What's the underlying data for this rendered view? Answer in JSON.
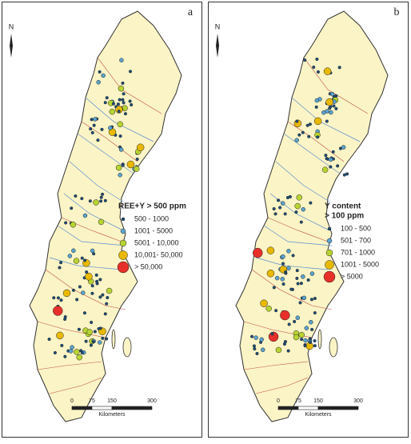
{
  "panels": [
    {
      "label": "a",
      "north": "N",
      "legend_title": [
        "REE+Y > 500 ppm"
      ],
      "legend_items": [
        {
          "label": "500 - 1000",
          "color": "#1f4e79"
        },
        {
          "label": "1001 - 5000",
          "color": "#5ba3d0"
        },
        {
          "label": "5001 - 10,000",
          "color": "#b8d432"
        },
        {
          "label": "10,001- 50,000",
          "color": "#e8b900"
        },
        {
          "label": "> 50,000",
          "color": "#e8302a"
        }
      ],
      "scale_bar": {
        "ticks": [
          0,
          75,
          150,
          300
        ],
        "unit": "Kilometers"
      }
    },
    {
      "label": "b",
      "north": "N",
      "legend_title": [
        "Y content",
        "> 100 ppm"
      ],
      "legend_items": [
        {
          "label": "100 - 500",
          "color": "#1f4e79"
        },
        {
          "label": "501 - 700",
          "color": "#5ba3d0"
        },
        {
          "label": "701 - 1000",
          "color": "#b8d432"
        },
        {
          "label": "1001 - 5000",
          "color": "#e8b900"
        },
        {
          "label": "> 5000",
          "color": "#e8302a"
        }
      ],
      "scale_bar": {
        "ticks": [
          0,
          75,
          150,
          300
        ],
        "unit": "Kilometers"
      }
    }
  ]
}
